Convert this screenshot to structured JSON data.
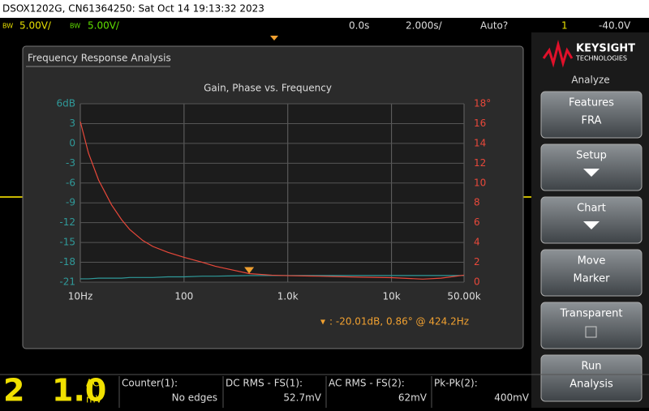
{
  "header": {
    "title": "DSOX1202G, CN61364250: Sat Oct 14 19:13:32 2023"
  },
  "status": {
    "ch1": "BW",
    "ch1_scale": "5.00V/",
    "ch2": "BW",
    "ch2_scale": "5.00V/",
    "delay": "0.0s",
    "timebase": "2.000s/",
    "trigger_mode": "Auto?",
    "trigger_source": "1",
    "trigger_level": "-40.0V"
  },
  "sidebar": {
    "brand": "KEYSIGHT",
    "brand_sub": "TECHNOLOGIES",
    "menu": "Analyze",
    "buttons": [
      {
        "label": "Features",
        "sub": "FRA"
      },
      {
        "label": "Setup"
      },
      {
        "label": "Chart"
      },
      {
        "label": "Move",
        "sub": "Marker"
      },
      {
        "label": "Transparent"
      },
      {
        "label": "Run",
        "sub": "Analysis"
      }
    ]
  },
  "footer": {
    "digit_big": "2",
    "digit_value": "1.0",
    "coupling": "AC",
    "unit": "mV",
    "measurements": [
      {
        "label": "Counter(1):",
        "value": "No edges"
      },
      {
        "label": "DC RMS - FS(1):",
        "value": "52.7mV"
      },
      {
        "label": "AC RMS - FS(2):",
        "value": "62mV"
      },
      {
        "label": "Pk-Pk(2):",
        "value": "400mV"
      }
    ]
  },
  "panel": {
    "title": "Frequency Response Analysis"
  },
  "chart_data": {
    "type": "line",
    "title": "Gain, Phase vs. Frequency",
    "log_x": true,
    "grid": true,
    "x": [
      10,
      12,
      15,
      20,
      25,
      30,
      40,
      50,
      70,
      100,
      150,
      200,
      300,
      424.2,
      700,
      1000,
      2000,
      5000,
      10000,
      20000,
      30000,
      50000
    ],
    "series": [
      {
        "name": "Gain",
        "color": "#2f9a9a",
        "values": [
          -20.5,
          -20.5,
          -20.4,
          -20.4,
          -20.4,
          -20.3,
          -20.3,
          -20.3,
          -20.2,
          -20.2,
          -20.1,
          -20.1,
          -20.05,
          -20.01,
          -20.0,
          -20.0,
          -20.0,
          -20.0,
          -20.0,
          -20.0,
          -20.0,
          -20.0
        ]
      },
      {
        "name": "Phase",
        "color": "#e8483a",
        "axis": "y2",
        "values": [
          16.2,
          13.0,
          10.3,
          7.8,
          6.3,
          5.3,
          4.2,
          3.6,
          3.0,
          2.5,
          2.0,
          1.6,
          1.2,
          0.86,
          0.7,
          0.65,
          0.6,
          0.5,
          0.45,
          0.3,
          0.4,
          0.7
        ]
      }
    ],
    "xlim": [
      10,
      50000
    ],
    "xticks": [
      {
        "value": 10,
        "label": "10Hz"
      },
      100,
      {
        "value": 1000,
        "label": "1.0k"
      },
      {
        "value": 10000,
        "label": "10k"
      },
      {
        "value": 50000,
        "label": "50.00k"
      }
    ],
    "ylim": [
      -21,
      6
    ],
    "yticks": [
      -21,
      -18,
      -15,
      -12,
      -9,
      -6,
      -3,
      0,
      3,
      {
        "value": 6,
        "label": "6dB"
      }
    ],
    "y2lim": [
      0,
      18
    ],
    "y2ticks": [
      0,
      2,
      4,
      6,
      8,
      10,
      12,
      14,
      16,
      {
        "value": 18,
        "label": "18°"
      }
    ],
    "marker_index": 13,
    "annotation": ": -20.01dB, 0.86° @ 424.2Hz"
  }
}
